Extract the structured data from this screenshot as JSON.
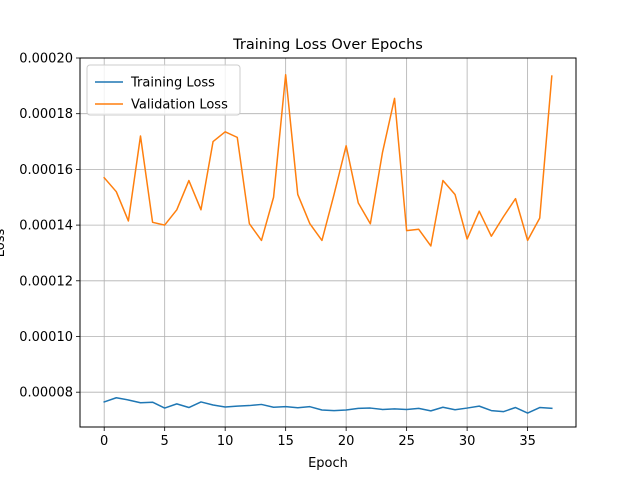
{
  "chart_data": {
    "type": "line",
    "title": "Training Loss Over Epochs",
    "xlabel": "Epoch",
    "ylabel": "Loss",
    "xlim": [
      -2,
      39
    ],
    "ylim": [
      6.75e-05,
      0.0002
    ],
    "xticks": [
      0,
      5,
      10,
      15,
      20,
      25,
      30,
      35
    ],
    "xtick_labels": [
      "0",
      "5",
      "10",
      "15",
      "20",
      "25",
      "30",
      "35"
    ],
    "yticks": [
      8e-05,
      0.0001,
      0.00012,
      0.00014,
      0.00016,
      0.00018,
      0.0002
    ],
    "ytick_labels": [
      "0.00008",
      "0.00010",
      "0.00012",
      "0.00014",
      "0.00016",
      "0.00018",
      "0.00020"
    ],
    "grid": true,
    "legend_position": "top-left",
    "x": [
      0,
      1,
      2,
      3,
      4,
      5,
      6,
      7,
      8,
      9,
      10,
      11,
      12,
      13,
      14,
      15,
      16,
      17,
      18,
      19,
      20,
      21,
      22,
      23,
      24,
      25,
      26,
      27,
      28,
      29,
      30,
      31,
      32,
      33,
      34,
      35,
      36,
      37
    ],
    "series": [
      {
        "name": "Training Loss",
        "color": "#1f77b4",
        "values": [
          7.65e-05,
          7.8e-05,
          7.72e-05,
          7.62e-05,
          7.64e-05,
          7.43e-05,
          7.58e-05,
          7.45e-05,
          7.65e-05,
          7.54e-05,
          7.47e-05,
          7.5e-05,
          7.52e-05,
          7.56e-05,
          7.46e-05,
          7.48e-05,
          7.44e-05,
          7.48e-05,
          7.36e-05,
          7.34e-05,
          7.36e-05,
          7.42e-05,
          7.43e-05,
          7.38e-05,
          7.4e-05,
          7.38e-05,
          7.42e-05,
          7.33e-05,
          7.46e-05,
          7.37e-05,
          7.43e-05,
          7.5e-05,
          7.34e-05,
          7.3e-05,
          7.45e-05,
          7.25e-05,
          7.45e-05,
          7.42e-05
        ]
      },
      {
        "name": "Validation Loss",
        "color": "#ff7f0e",
        "values": [
          0.000157,
          0.000152,
          0.0001415,
          0.000172,
          0.000141,
          0.00014,
          0.0001455,
          0.000156,
          0.0001455,
          0.00017,
          0.0001735,
          0.0001715,
          0.0001405,
          0.0001345,
          0.00015,
          0.000194,
          0.000151,
          0.0001405,
          0.0001345,
          0.000151,
          0.0001685,
          0.000148,
          0.0001405,
          0.000166,
          0.0001855,
          0.000138,
          0.0001385,
          0.0001325,
          0.000156,
          0.000151,
          0.000135,
          0.000145,
          0.000136,
          0.000143,
          0.0001495,
          0.0001345,
          0.0001425,
          0.0001935
        ]
      }
    ]
  }
}
